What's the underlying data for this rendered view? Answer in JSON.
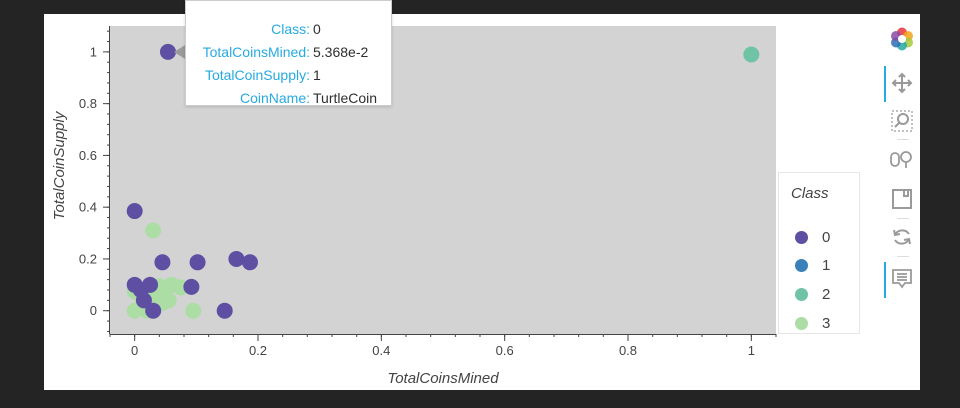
{
  "chart_data": {
    "type": "scatter",
    "xlabel": "TotalCoinsMined",
    "ylabel": "TotalCoinSupply",
    "xlim": [
      -0.04,
      1.04
    ],
    "ylim": [
      -0.09,
      1.1
    ],
    "x_ticks": [
      "0",
      "0.2",
      "0.4",
      "0.6",
      "0.8",
      "1"
    ],
    "y_ticks": [
      "0",
      "0.2",
      "0.4",
      "0.6",
      "0.8",
      "1"
    ],
    "x_tick_values": [
      0,
      0.2,
      0.4,
      0.6,
      0.8,
      1
    ],
    "y_tick_values": [
      0,
      0.2,
      0.4,
      0.6,
      0.8,
      1
    ],
    "plot_background": "#d3d3d3",
    "legend_position": "right",
    "legend": {
      "title": "Class",
      "items": [
        {
          "label": "0",
          "color": "#5e4fa2"
        },
        {
          "label": "1",
          "color": "#3a80b9"
        },
        {
          "label": "2",
          "color": "#71c3a5"
        },
        {
          "label": "3",
          "color": "#abdda4"
        }
      ]
    },
    "series": [
      {
        "name": "0",
        "color": "#5e4fa2",
        "points": [
          [
            0.054,
            1.0
          ],
          [
            0.0,
            0.385
          ],
          [
            0.045,
            0.187
          ],
          [
            0.102,
            0.187
          ],
          [
            0.165,
            0.2
          ],
          [
            0.187,
            0.187
          ],
          [
            0.0,
            0.1
          ],
          [
            0.092,
            0.092
          ],
          [
            0.146,
            0.0
          ],
          [
            0.015,
            0.04
          ],
          [
            0.03,
            0.0
          ],
          [
            0.01,
            0.08
          ],
          [
            0.025,
            0.1
          ]
        ]
      },
      {
        "name": "1",
        "color": "#3a80b9",
        "points": []
      },
      {
        "name": "2",
        "color": "#71c3a5",
        "points": [
          [
            1.0,
            0.99
          ]
        ]
      },
      {
        "name": "3",
        "color": "#abdda4",
        "points": [
          [
            0.03,
            0.31
          ],
          [
            0.0,
            0.075
          ],
          [
            0.0,
            0.0
          ],
          [
            0.012,
            0.02
          ],
          [
            0.02,
            0.05
          ],
          [
            0.03,
            0.085
          ],
          [
            0.04,
            0.095
          ],
          [
            0.05,
            0.06
          ],
          [
            0.06,
            0.1
          ],
          [
            0.075,
            0.09
          ],
          [
            0.095,
            0.0
          ],
          [
            0.045,
            0.03
          ],
          [
            0.02,
            0.0
          ],
          [
            0.035,
            0.04
          ],
          [
            0.01,
            0.06
          ],
          [
            0.055,
            0.04
          ]
        ]
      }
    ]
  },
  "tooltip": {
    "rows": [
      {
        "key": "Class:",
        "value": "0"
      },
      {
        "key": "TotalCoinsMined:",
        "value": "5.368e-2"
      },
      {
        "key": "TotalCoinSupply:",
        "value": "1"
      },
      {
        "key": "CoinName:",
        "value": "TurtleCoin"
      }
    ]
  },
  "toolbar": {
    "tools": [
      {
        "name": "bokeh-logo-icon"
      },
      {
        "name": "pan-icon",
        "active": true
      },
      {
        "name": "box-zoom-icon"
      },
      {
        "name": "wheel-zoom-icon"
      },
      {
        "name": "save-icon"
      },
      {
        "name": "reset-icon"
      },
      {
        "name": "hover-icon",
        "active": true
      }
    ]
  }
}
